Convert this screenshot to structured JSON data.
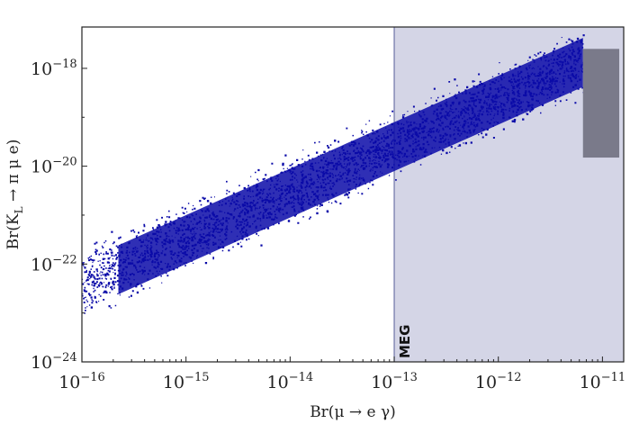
{
  "chart_data": {
    "type": "scatter",
    "title": "",
    "xlabel": "Br(μ → e γ)",
    "ylabel": "Br(K_L → π μ e)",
    "x_scale": "log",
    "y_scale": "log",
    "xlim": [
      1e-16,
      1.6e-11
    ],
    "ylim": [
      1e-24,
      7e-18
    ],
    "x_ticks": [
      {
        "base": "10",
        "exp": "−16",
        "value": 1e-16
      },
      {
        "base": "10",
        "exp": "−15",
        "value": 1e-15
      },
      {
        "base": "10",
        "exp": "−14",
        "value": 1e-14
      },
      {
        "base": "10",
        "exp": "−13",
        "value": 1e-13
      },
      {
        "base": "10",
        "exp": "−12",
        "value": 1e-12
      },
      {
        "base": "10",
        "exp": "−11",
        "value": 1e-11
      }
    ],
    "y_ticks": [
      {
        "base": "10",
        "exp": "−24",
        "value": 1e-24
      },
      {
        "base": "10",
        "exp": "−22",
        "value": 1e-22
      },
      {
        "base": "10",
        "exp": "−20",
        "value": 1e-20
      },
      {
        "base": "10",
        "exp": "−18",
        "value": 1e-18
      }
    ],
    "series": [
      {
        "color": "#0a0aa8",
        "points_estimated": 3000,
        "band": {
          "x_range": [
            1e-16,
            6.5e-12
          ],
          "log_center_at_xmin": -22.4,
          "log_slope": 0.95,
          "log_halfwidth": 0.9
        }
      },
      {
        "color": "#7a7a8a",
        "band": {
          "x_range": [
            6.5e-12,
            1.45e-11
          ],
          "y_range": [
            1.5e-20,
            2.5e-18
          ]
        }
      }
    ],
    "shaded_regions": [
      {
        "label": "MEG",
        "x_from": 1e-13,
        "x_to": 1.6e-11,
        "color": "#d4d5e6",
        "border_color": "#6f74a8"
      }
    ],
    "grid": false,
    "legend": "none"
  }
}
